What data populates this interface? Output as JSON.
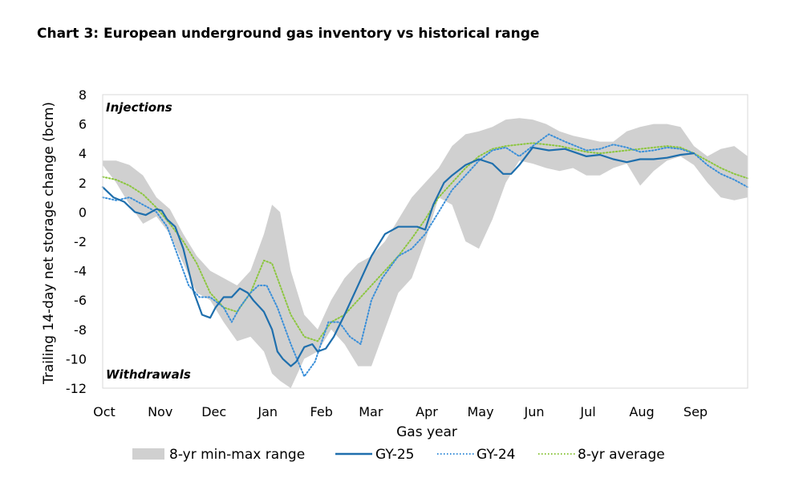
{
  "chart_data": {
    "type": "line",
    "title": "Chart 3: European underground gas inventory vs historical range",
    "xlabel": "Gas year",
    "ylabel": "Trailing 14-day net storage change (bcm)",
    "ylim": [
      -12,
      8
    ],
    "yticks": [
      8,
      6,
      4,
      2,
      0,
      -2,
      -4,
      -6,
      -8,
      -10,
      -12
    ],
    "xlim": [
      0,
      12
    ],
    "month_labels": [
      "Oct",
      "Nov",
      "Dec",
      "Jan",
      "Feb",
      "Mar",
      "Apr",
      "May",
      "Jun",
      "Jul",
      "Aug",
      "Sep"
    ],
    "month_positions": [
      0,
      1.04,
      2.04,
      3.04,
      4.04,
      4.96,
      6.0,
      7.0,
      8.0,
      9.0,
      10.0,
      11.0
    ],
    "annotations": [
      "Injections",
      "Withdrawals"
    ],
    "legend_position": "bottom",
    "grid": false,
    "range": {
      "name": "8-yr min-max range",
      "color": "#d0d0d0",
      "x": [
        0,
        0.25,
        0.5,
        0.75,
        1.0,
        1.25,
        1.5,
        1.75,
        2.0,
        2.25,
        2.5,
        2.75,
        3.0,
        3.15,
        3.3,
        3.5,
        3.75,
        4.0,
        4.25,
        4.5,
        4.75,
        5.0,
        5.25,
        5.5,
        5.75,
        6.0,
        6.25,
        6.5,
        6.75,
        7.0,
        7.25,
        7.5,
        7.75,
        8.0,
        8.25,
        8.5,
        8.75,
        9.0,
        9.25,
        9.5,
        9.75,
        10.0,
        10.25,
        10.5,
        10.75,
        11.0,
        11.25,
        11.5,
        11.75,
        12.0
      ],
      "max": [
        3.5,
        3.5,
        3.2,
        2.5,
        1.0,
        0.2,
        -1.5,
        -3.0,
        -4.0,
        -4.5,
        -5.0,
        -4.0,
        -1.5,
        0.5,
        0.0,
        -4.0,
        -7.0,
        -8.0,
        -6.0,
        -4.5,
        -3.5,
        -3.0,
        -2.0,
        -0.5,
        1.0,
        2.0,
        3.0,
        4.5,
        5.3,
        5.5,
        5.8,
        6.3,
        6.4,
        6.3,
        6.0,
        5.5,
        5.2,
        5.0,
        4.8,
        4.8,
        5.5,
        5.8,
        6.0,
        6.0,
        5.8,
        4.5,
        3.8,
        4.3,
        4.5,
        3.8
      ],
      "min": [
        3.2,
        2.0,
        0.5,
        -0.8,
        -0.3,
        -1.5,
        -3.5,
        -5.5,
        -6.0,
        -7.5,
        -8.8,
        -8.5,
        -9.5,
        -11.0,
        -11.5,
        -12.0,
        -10.0,
        -9.5,
        -8.0,
        -9.0,
        -10.5,
        -10.5,
        -8.0,
        -5.5,
        -4.5,
        -2.0,
        1.0,
        0.5,
        -2.0,
        -2.5,
        -0.5,
        2.0,
        3.5,
        3.3,
        3.0,
        2.8,
        3.0,
        2.5,
        2.5,
        3.0,
        3.3,
        1.8,
        2.8,
        3.5,
        3.8,
        3.2,
        2.0,
        1.0,
        0.8,
        1.0
      ]
    },
    "series": [
      {
        "name": "GY-25",
        "color": "#1f6fad",
        "style": "solid",
        "x": [
          0,
          0.2,
          0.4,
          0.6,
          0.8,
          1.0,
          1.1,
          1.2,
          1.35,
          1.5,
          1.7,
          1.85,
          2.0,
          2.1,
          2.25,
          2.4,
          2.55,
          2.7,
          2.8,
          3.0,
          3.15,
          3.25,
          3.35,
          3.5,
          3.6,
          3.75,
          3.9,
          4.0,
          4.15,
          4.3,
          4.5,
          4.75,
          5.0,
          5.25,
          5.5,
          5.7,
          5.85,
          6.0,
          6.15,
          6.35,
          6.5,
          6.75,
          7.0,
          7.25,
          7.45,
          7.6,
          7.75,
          8.0,
          8.3,
          8.6,
          9.0,
          9.25,
          9.5,
          9.75,
          10.0,
          10.25,
          10.5,
          10.75,
          11.0
        ],
        "values": [
          1.7,
          1.0,
          0.7,
          0.0,
          -0.2,
          0.2,
          0.1,
          -0.5,
          -1.0,
          -2.5,
          -5.5,
          -7.0,
          -7.2,
          -6.5,
          -5.8,
          -5.8,
          -5.2,
          -5.5,
          -6.0,
          -6.8,
          -8.0,
          -9.5,
          -10.0,
          -10.5,
          -10.2,
          -9.2,
          -9.0,
          -9.5,
          -9.3,
          -8.5,
          -7.0,
          -5.0,
          -3.0,
          -1.5,
          -1.0,
          -1.0,
          -1.0,
          -1.2,
          0.5,
          2.0,
          2.5,
          3.2,
          3.6,
          3.3,
          2.6,
          2.6,
          3.2,
          4.4,
          4.2,
          4.3,
          3.8,
          3.9,
          3.6,
          3.4,
          3.6,
          3.6,
          3.7,
          3.9,
          4.0
        ]
      },
      {
        "name": "GY-24",
        "color": "#3a8fd9",
        "style": "dotted",
        "x": [
          0,
          0.25,
          0.5,
          0.75,
          1.0,
          1.2,
          1.4,
          1.6,
          1.8,
          2.0,
          2.25,
          2.4,
          2.55,
          2.75,
          2.9,
          3.05,
          3.25,
          3.5,
          3.75,
          3.95,
          4.2,
          4.4,
          4.6,
          4.8,
          5.0,
          5.2,
          5.5,
          5.75,
          6.0,
          6.25,
          6.5,
          6.75,
          7.0,
          7.25,
          7.5,
          7.75,
          8.0,
          8.3,
          8.6,
          9.0,
          9.25,
          9.5,
          9.75,
          10.0,
          10.25,
          10.5,
          10.75,
          11.0,
          11.25,
          11.5,
          11.75,
          12.0
        ],
        "values": [
          1.0,
          0.8,
          1.0,
          0.5,
          0.0,
          -1.0,
          -3.0,
          -5.0,
          -5.8,
          -5.8,
          -6.5,
          -7.5,
          -6.5,
          -5.5,
          -5.0,
          -5.0,
          -6.5,
          -9.0,
          -11.2,
          -10.2,
          -7.5,
          -7.5,
          -8.5,
          -9.0,
          -6.0,
          -4.5,
          -3.0,
          -2.5,
          -1.5,
          0.0,
          1.5,
          2.5,
          3.5,
          4.2,
          4.4,
          3.8,
          4.5,
          5.3,
          4.8,
          4.2,
          4.3,
          4.6,
          4.4,
          4.1,
          4.2,
          4.4,
          4.3,
          4.0,
          3.2,
          2.6,
          2.2,
          1.7
        ]
      },
      {
        "name": "8-yr average",
        "color": "#8cc63f",
        "style": "dotted",
        "x": [
          0,
          0.25,
          0.5,
          0.75,
          1.0,
          1.25,
          1.5,
          1.75,
          2.0,
          2.25,
          2.5,
          2.75,
          3.0,
          3.15,
          3.3,
          3.5,
          3.75,
          4.0,
          4.25,
          4.5,
          4.75,
          5.0,
          5.25,
          5.5,
          5.75,
          6.0,
          6.25,
          6.5,
          6.75,
          7.0,
          7.25,
          7.5,
          7.75,
          8.0,
          8.25,
          8.5,
          8.75,
          9.0,
          9.25,
          9.5,
          9.75,
          10.0,
          10.25,
          10.5,
          10.75,
          11.0,
          11.25,
          11.5,
          11.75,
          12.0
        ],
        "values": [
          2.4,
          2.2,
          1.8,
          1.2,
          0.3,
          -0.8,
          -2.0,
          -3.5,
          -5.5,
          -6.5,
          -6.8,
          -5.5,
          -3.3,
          -3.5,
          -5.0,
          -7.0,
          -8.5,
          -8.8,
          -7.5,
          -7.0,
          -6.0,
          -5.0,
          -4.0,
          -3.0,
          -1.8,
          -0.5,
          1.0,
          2.0,
          3.0,
          3.8,
          4.3,
          4.5,
          4.6,
          4.7,
          4.6,
          4.5,
          4.3,
          4.1,
          4.0,
          4.1,
          4.2,
          4.3,
          4.4,
          4.5,
          4.4,
          4.0,
          3.5,
          3.0,
          2.6,
          2.3
        ]
      }
    ]
  }
}
